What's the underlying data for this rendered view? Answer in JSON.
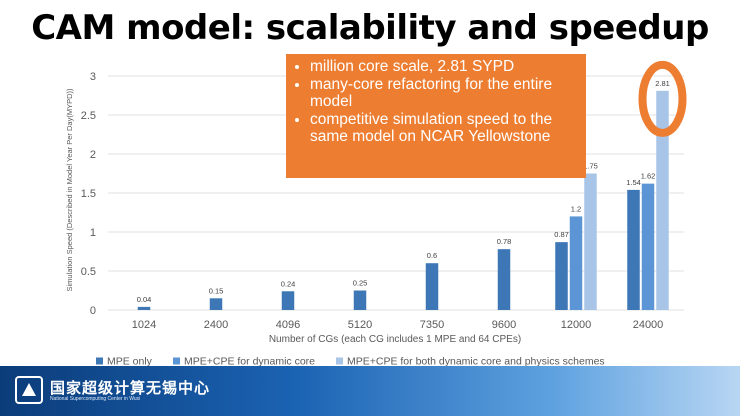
{
  "slide": {
    "title": "CAM model: scalability and speedup"
  },
  "callout": {
    "bullets": [
      "million core scale, 2.81 SYPD",
      "many-core refactoring for the entire model",
      "competitive simulation speed to the same model on NCAR Yellowstone"
    ],
    "color": "#ed7d31"
  },
  "logo": {
    "chinese_name": "国家超级计算无锡中心",
    "english_name": "National Supercomputing Center in Wuxi"
  },
  "chart_data": {
    "type": "bar",
    "categories": [
      "1024",
      "2400",
      "4096",
      "5120",
      "7350",
      "9600",
      "12000",
      "24000"
    ],
    "series": [
      {
        "name": "MPE only",
        "color": "#3d77b6",
        "values": [
          0.04,
          0.15,
          0.24,
          0.25,
          0.6,
          0.78,
          0.87,
          1.54
        ]
      },
      {
        "name": "MPE+CPE for dynamic core",
        "color": "#5b95d6",
        "values": [
          null,
          null,
          null,
          null,
          null,
          null,
          1.2,
          1.62
        ]
      },
      {
        "name": "MPE+CPE for both dynamic core and physics schemes",
        "color": "#a8c5e8",
        "values": [
          null,
          null,
          null,
          null,
          null,
          null,
          1.75,
          2.81
        ]
      }
    ],
    "data_labels": [
      [
        "0.04",
        "0.15",
        "0.24",
        "0.25",
        "0.6",
        "0.78",
        "0.87",
        "1.54"
      ],
      [
        null,
        null,
        null,
        null,
        null,
        null,
        "1.2",
        "1.62"
      ],
      [
        null,
        null,
        null,
        null,
        null,
        null,
        "1.75",
        "2.81"
      ]
    ],
    "xlabel": "Number of CGs (each CG includes 1 MPE and 64 CPEs)",
    "ylabel": "Simulation Speed (Described in Model Year Per Day(MYPD))",
    "yticks": [
      "0",
      "0.5",
      "1",
      "1.5",
      "2",
      "2.5",
      "3"
    ],
    "ylim": [
      0,
      3
    ],
    "grid": true,
    "legend_position": "bottom",
    "highlight": {
      "category": "24000",
      "series": 2,
      "shape": "ring",
      "color": "#ed7d31"
    }
  }
}
